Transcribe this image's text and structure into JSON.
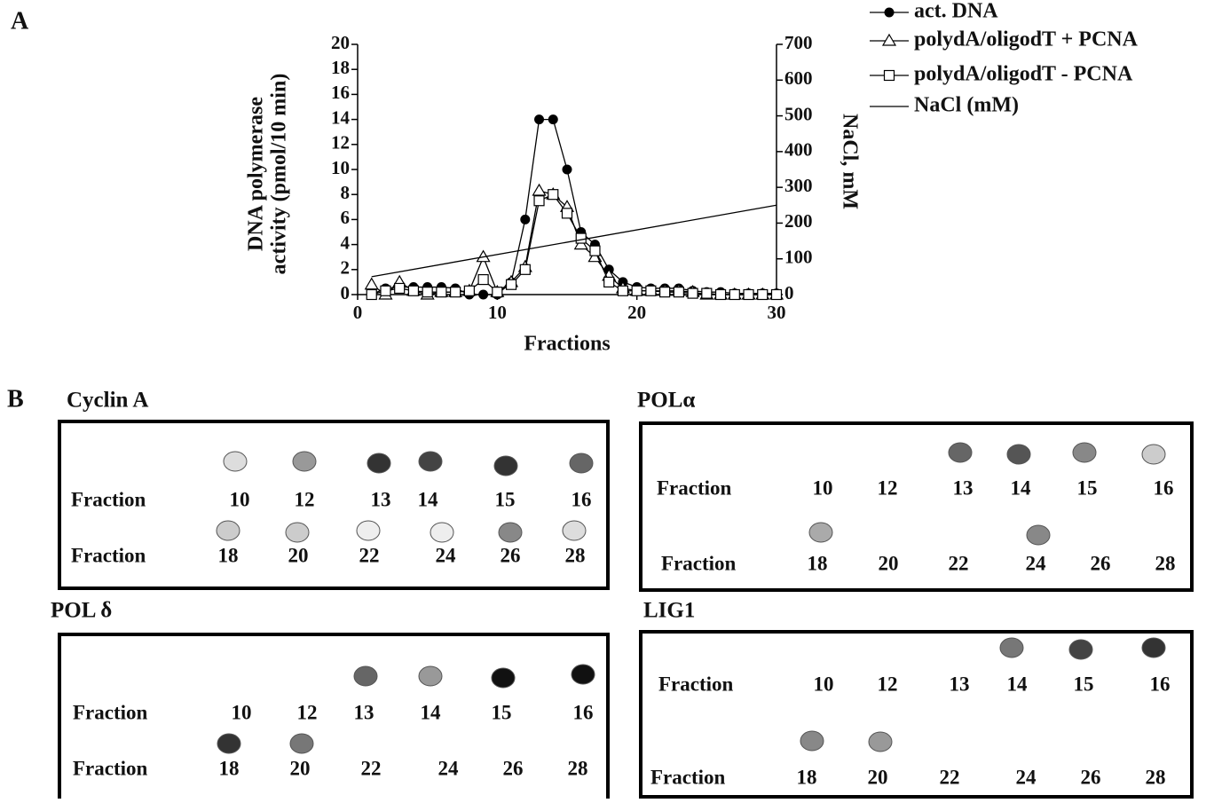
{
  "chart_data": {
    "type": "line",
    "panel_label": "A",
    "x": [
      1,
      2,
      3,
      4,
      5,
      6,
      7,
      8,
      9,
      10,
      11,
      12,
      13,
      14,
      15,
      16,
      17,
      18,
      19,
      20,
      21,
      22,
      23,
      24,
      25,
      26,
      27,
      28,
      29,
      30
    ],
    "series": [
      {
        "name": "act. DNA",
        "color": "#000000",
        "marker": "circle-filled",
        "values": [
          0,
          0.5,
          0.6,
          0.6,
          0.6,
          0.6,
          0.5,
          0,
          0,
          0,
          1,
          6,
          14,
          14,
          10,
          5,
          4,
          2,
          1,
          0.6,
          0.5,
          0.5,
          0.5,
          0.3,
          0.2,
          0.2,
          0.1,
          0.1,
          0.1,
          0.1
        ]
      },
      {
        "name": "polydA/oligodT + PCNA",
        "color": "#000000",
        "marker": "triangle-open",
        "values": [
          0.8,
          0,
          1,
          0.3,
          0,
          0.2,
          0.2,
          0.3,
          3,
          0.2,
          1,
          2.2,
          8.3,
          8,
          7,
          4,
          3,
          1.5,
          0.5,
          0.3,
          0.3,
          0.3,
          0.3,
          0.2,
          0,
          0,
          0,
          0,
          0,
          0
        ]
      },
      {
        "name": "polydA/oligodT - PCNA",
        "color": "#000000",
        "marker": "square-open",
        "values": [
          0,
          0.3,
          0.5,
          0.3,
          0.2,
          0.2,
          0.2,
          0.3,
          1.2,
          0.2,
          0.8,
          2,
          7.5,
          8,
          6.5,
          4.5,
          3.5,
          1,
          0.3,
          0.3,
          0.3,
          0.2,
          0.2,
          0.1,
          0.1,
          0,
          0,
          0,
          0,
          0
        ]
      },
      {
        "name": "NaCl (mM)",
        "color": "#000000",
        "marker": null,
        "axis": "y2",
        "x": [
          1,
          30
        ],
        "values": [
          50,
          250
        ]
      }
    ],
    "xlabel": "Fractions",
    "ylabel": [
      "DNA polymerase",
      "activity (pmol/10 min)"
    ],
    "y2label": "NaCl, mM",
    "xlim": [
      0,
      30
    ],
    "xticks": [
      0,
      10,
      20,
      30
    ],
    "ylim": [
      0,
      20
    ],
    "yticks": [
      0,
      2,
      4,
      6,
      8,
      10,
      12,
      14,
      16,
      18,
      20
    ],
    "y2lim": [
      0,
      700
    ],
    "y2ticks": [
      0,
      100,
      200,
      300,
      400,
      500,
      600,
      700
    ],
    "grid": false,
    "legend": "top-right"
  },
  "panel_b": {
    "label": "B",
    "blots": [
      {
        "title": "Cyclin A",
        "rows": [
          {
            "label": "Fraction",
            "fractions": [
              10,
              12,
              13,
              14,
              15,
              16
            ]
          },
          {
            "label": "Fraction",
            "fractions": [
              18,
              20,
              22,
              24,
              26,
              28
            ]
          }
        ]
      },
      {
        "title": "POLα",
        "rows": [
          {
            "label": "Fraction",
            "fractions": [
              10,
              12,
              13,
              14,
              15,
              16
            ]
          },
          {
            "label": "Fraction",
            "fractions": [
              18,
              20,
              22,
              24,
              26,
              28
            ]
          }
        ]
      },
      {
        "title": "POL δ",
        "rows": [
          {
            "label": "Fraction",
            "fractions": [
              10,
              12,
              13,
              14,
              15,
              16
            ]
          },
          {
            "label": "Fraction",
            "fractions": [
              18,
              20,
              22,
              24,
              26,
              28
            ]
          }
        ]
      },
      {
        "title": "LIG1",
        "rows": [
          {
            "label": "Fraction",
            "fractions": [
              10,
              12,
              13,
              14,
              15,
              16
            ]
          },
          {
            "label": "Fraction",
            "fractions": [
              18,
              20,
              22,
              24,
              26,
              28
            ]
          }
        ]
      }
    ]
  }
}
